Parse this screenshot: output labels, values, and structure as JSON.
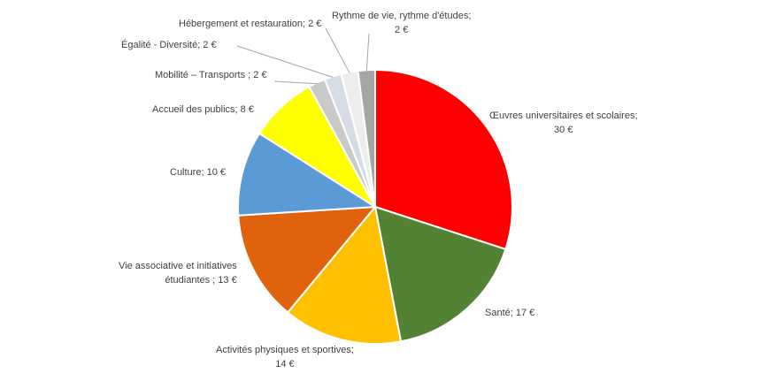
{
  "chart_data": {
    "type": "pie",
    "slices": [
      {
        "name": "Œuvres universitaires et scolaires",
        "value": 30,
        "value_label": "30 €",
        "color": "#ff0000"
      },
      {
        "name": "Santé",
        "value": 17,
        "value_label": "17 €",
        "color": "#548235"
      },
      {
        "name": "Activités physiques et sportives",
        "value": 14,
        "value_label": "14 €",
        "color": "#ffc000"
      },
      {
        "name": "Vie associative et initiatives étudiantes",
        "value": 13,
        "value_label": "13 €",
        "color": "#e0620d"
      },
      {
        "name": "Culture",
        "value": 10,
        "value_label": "10 €",
        "color": "#5b9bd5"
      },
      {
        "name": "Accueil des publics",
        "value": 8,
        "value_label": "8 €",
        "color": "#ffff00"
      },
      {
        "name": "Mobilité – Transports",
        "value": 2,
        "value_label": "2 €",
        "color": "#c9c9c9"
      },
      {
        "name": "Égalité - Diversité",
        "value": 2,
        "value_label": "2 €",
        "color": "#d6dce5"
      },
      {
        "name": "Hébergement et restauration",
        "value": 2,
        "value_label": "2 €",
        "color": "#ededed"
      },
      {
        "name": "Rythme de vie, rythme d'études",
        "value": 2,
        "value_label": "2 €",
        "color": "#a5a5a5"
      }
    ],
    "start_angle_deg": 0,
    "direction": "clockwise",
    "legend": "none",
    "data_labels": "outside with leader lines"
  },
  "labels": {
    "s0": {
      "line1": "Œuvres universitaires et scolaires;",
      "line2": "30 €"
    },
    "s1": {
      "line1": "Santé;  17 €"
    },
    "s2": {
      "line1": "Activités physiques et sportives;",
      "line2": "14 €"
    },
    "s3": {
      "line1": "Vie associative et initiatives",
      "line2": "étudiantes ;  13 €"
    },
    "s4": {
      "line1": "Culture;  10 €"
    },
    "s5": {
      "line1": "Accueil des publics;  8 €"
    },
    "s6": {
      "line1": "Mobilité – Transports ;  2 €"
    },
    "s7": {
      "line1": "Égalité - Diversité;  2 €"
    },
    "s8": {
      "line1": "Hébergement et restauration;  2 €"
    },
    "s9": {
      "line1": "Rythme de vie, rythme d'études;",
      "line2": "2 €"
    }
  }
}
